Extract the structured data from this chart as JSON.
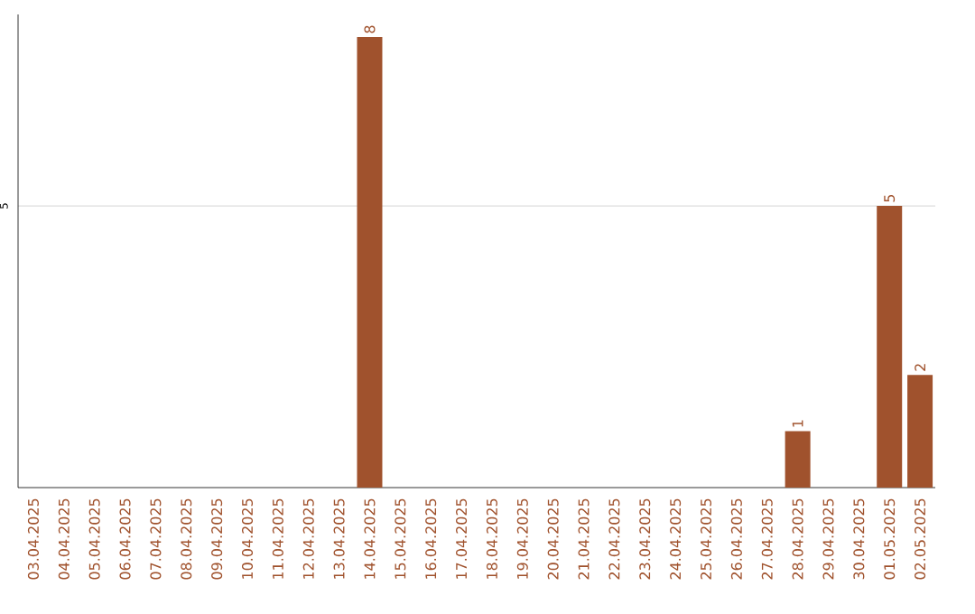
{
  "chart_data": {
    "type": "bar",
    "categories": [
      "03.04.2025",
      "04.04.2025",
      "05.04.2025",
      "06.04.2025",
      "07.04.2025",
      "08.04.2025",
      "09.04.2025",
      "10.04.2025",
      "11.04.2025",
      "12.04.2025",
      "13.04.2025",
      "14.04.2025",
      "15.04.2025",
      "16.04.2025",
      "17.04.2025",
      "18.04.2025",
      "19.04.2025",
      "20.04.2025",
      "21.04.2025",
      "22.04.2025",
      "23.04.2025",
      "24.04.2025",
      "25.04.2025",
      "26.04.2025",
      "27.04.2025",
      "28.04.2025",
      "29.04.2025",
      "30.04.2025",
      "01.05.2025",
      "02.05.2025"
    ],
    "values": [
      0,
      0,
      0,
      0,
      0,
      0,
      0,
      0,
      0,
      0,
      0,
      8,
      0,
      0,
      0,
      0,
      0,
      0,
      0,
      0,
      0,
      0,
      0,
      0,
      0,
      1,
      0,
      0,
      5,
      2
    ],
    "value_labels": [
      null,
      null,
      null,
      null,
      null,
      null,
      null,
      null,
      null,
      null,
      null,
      "8",
      null,
      null,
      null,
      null,
      null,
      null,
      null,
      null,
      null,
      null,
      null,
      null,
      null,
      "1",
      null,
      null,
      "5",
      "2"
    ],
    "color": "#a0522d",
    "ylim": [
      0,
      8.4
    ],
    "yticks": [
      5
    ],
    "grid": "y"
  }
}
